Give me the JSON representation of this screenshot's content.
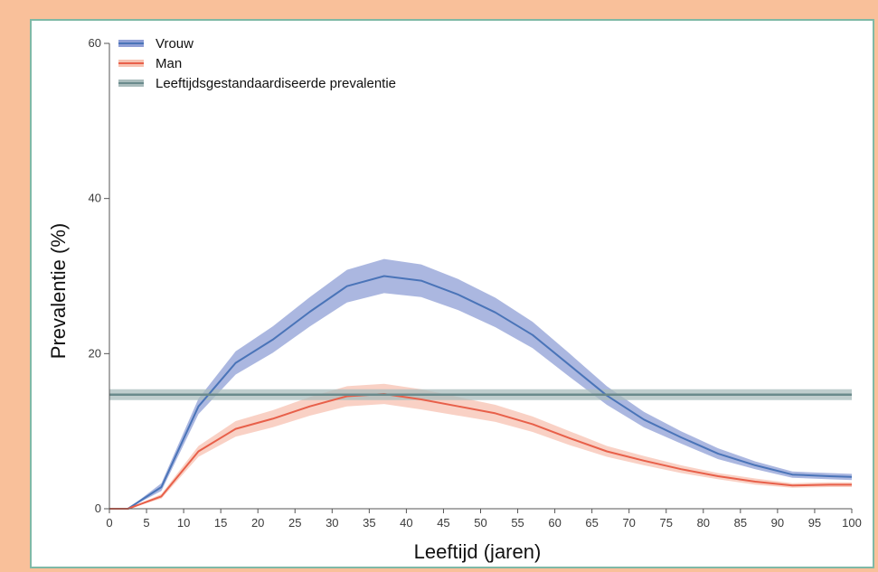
{
  "chart_data": {
    "type": "line",
    "xlabel": "Leeftijd (jaren)",
    "ylabel": "Prevalentie (%)",
    "xlim": [
      0,
      100
    ],
    "ylim": [
      0,
      60
    ],
    "x_ticks": [
      "0",
      "5",
      "10",
      "15",
      "20",
      "25",
      "30",
      "35",
      "40",
      "45",
      "50",
      "55",
      "60",
      "65",
      "70",
      "75",
      "80",
      "85",
      "90",
      "95",
      "100"
    ],
    "y_ticks": [
      "0",
      "20",
      "40",
      "60"
    ],
    "legend_position": "top-left",
    "series": [
      {
        "name": "Vrouw",
        "color": "#4a74b8",
        "band_color": "#8f9fd6",
        "x": [
          0,
          2.5,
          7,
          12,
          17,
          22,
          27,
          32,
          37,
          42,
          47,
          52,
          57,
          62,
          67,
          72,
          77,
          82,
          87,
          92,
          97,
          100
        ],
        "y": [
          0,
          0,
          2.8,
          13.2,
          18.8,
          21.8,
          25.4,
          28.7,
          30.0,
          29.4,
          27.6,
          25.3,
          22.4,
          18.5,
          14.6,
          11.5,
          9.2,
          7.1,
          5.6,
          4.4,
          4.2,
          4.1
        ],
        "band": [
          0,
          0,
          0.5,
          1.0,
          1.5,
          1.7,
          1.9,
          2.1,
          2.2,
          2.1,
          2.0,
          1.9,
          1.7,
          1.5,
          1.2,
          1.0,
          0.8,
          0.7,
          0.5,
          0.4,
          0.4,
          0.4
        ]
      },
      {
        "name": "Man",
        "color": "#e8604a",
        "band_color": "#f7c2b1",
        "x": [
          0,
          2.5,
          7,
          12,
          17,
          22,
          27,
          32,
          37,
          42,
          47,
          52,
          57,
          62,
          67,
          72,
          77,
          82,
          87,
          92,
          97,
          100
        ],
        "y": [
          0,
          0,
          1.6,
          7.4,
          10.3,
          11.6,
          13.2,
          14.5,
          14.8,
          14.1,
          13.2,
          12.3,
          10.9,
          9.1,
          7.4,
          6.2,
          5.1,
          4.2,
          3.5,
          3.0,
          3.1,
          3.1
        ],
        "band": [
          0,
          0,
          0.3,
          0.7,
          1.0,
          1.1,
          1.2,
          1.3,
          1.3,
          1.3,
          1.2,
          1.1,
          1.0,
          0.9,
          0.7,
          0.6,
          0.5,
          0.4,
          0.4,
          0.3,
          0.3,
          0.3
        ]
      },
      {
        "name": "Leeftijdsgestandaardiseerde prevalentie",
        "color": "#6a8a8c",
        "band_color": "#a9bcbc",
        "x": [
          0,
          100
        ],
        "y": [
          14.7,
          14.7
        ],
        "band": [
          0.7,
          0.7
        ]
      }
    ]
  }
}
